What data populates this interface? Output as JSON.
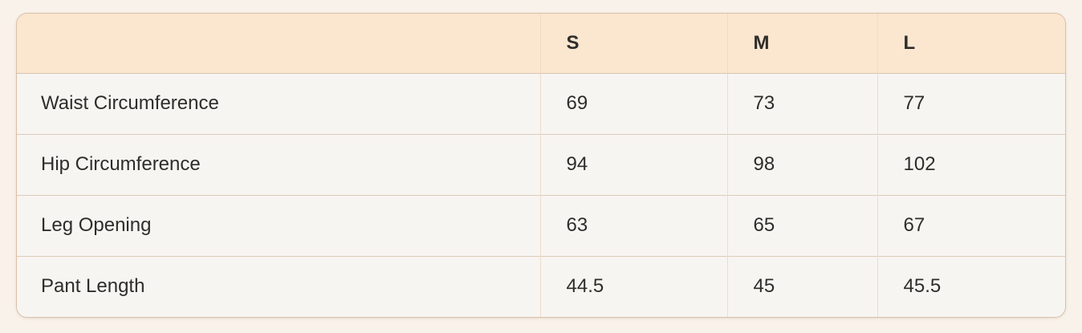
{
  "size_chart": {
    "columns": [
      {
        "label": ""
      },
      {
        "label": "S"
      },
      {
        "label": "M"
      },
      {
        "label": "L"
      }
    ],
    "rows": [
      {
        "label": "Waist Circumference",
        "values": [
          "69",
          "73",
          "77"
        ]
      },
      {
        "label": "Hip Circumference",
        "values": [
          "94",
          "98",
          "102"
        ]
      },
      {
        "label": "Leg Opening",
        "values": [
          "63",
          "65",
          "67"
        ]
      },
      {
        "label": "Pant Length",
        "values": [
          "44.5",
          "45",
          "45.5"
        ]
      }
    ]
  },
  "colors": {
    "page_background": "#f8f2ea",
    "header_background": "#fbe6d0",
    "row_background": "#f7f5f2",
    "outer_border": "#d9bfa8",
    "vertical_divider": "#eedcc8",
    "horizontal_divider": "#ddcbb8",
    "text": "#2f2d2a"
  }
}
